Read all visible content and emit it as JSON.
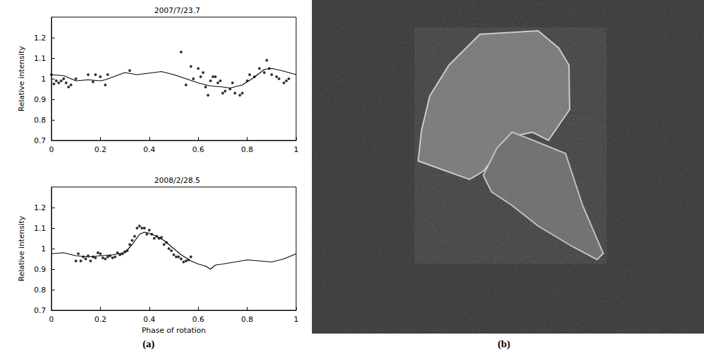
{
  "panel_labels": [
    "(a)",
    "(b)"
  ],
  "chart_data": [
    {
      "type": "line",
      "title": "2007/7/23.7",
      "ylabel": "Relative intensity",
      "xlim": [
        0,
        1
      ],
      "xticks": [
        0,
        0.2,
        0.4,
        0.6,
        0.8,
        1
      ],
      "ylim": [
        0.7,
        1.3
      ],
      "yticks": [
        0.7,
        0.8,
        0.9,
        1,
        1.1,
        1.2
      ],
      "grid": false,
      "series": [
        {
          "type": "line",
          "color": "#000000",
          "line_style": "solid",
          "x": [
            0,
            0.05,
            0.1,
            0.15,
            0.2,
            0.22,
            0.3,
            0.35,
            0.45,
            0.5,
            0.55,
            0.6,
            0.65,
            0.7,
            0.73,
            0.78,
            0.82,
            0.87,
            0.9,
            0.94,
            1
          ],
          "values": [
            1.02,
            1.015,
            0.99,
            0.995,
            0.99,
            0.995,
            1.03,
            1.02,
            1.035,
            1.02,
            1.0,
            0.98,
            0.965,
            0.96,
            0.955,
            0.97,
            1.0,
            1.045,
            1.05,
            1.04,
            1.02
          ]
        },
        {
          "type": "scatter",
          "color": "#000000",
          "marker": "circle",
          "x": [
            0,
            0.01,
            0.02,
            0.03,
            0.04,
            0.05,
            0.06,
            0.07,
            0.08,
            0.1,
            0.15,
            0.17,
            0.18,
            0.2,
            0.22,
            0.23,
            0.32,
            0.53,
            0.55,
            0.57,
            0.58,
            0.6,
            0.61,
            0.62,
            0.63,
            0.64,
            0.65,
            0.66,
            0.67,
            0.68,
            0.69,
            0.7,
            0.71,
            0.73,
            0.74,
            0.75,
            0.77,
            0.78,
            0.8,
            0.81,
            0.83,
            0.85,
            0.87,
            0.88,
            0.89,
            0.9,
            0.92,
            0.93,
            0.95,
            0.96,
            0.97
          ],
          "values": [
            1.02,
            0.975,
            0.99,
            0.98,
            0.99,
            1.0,
            0.98,
            0.96,
            0.97,
            1.0,
            1.02,
            0.985,
            1.02,
            1.01,
            0.97,
            1.02,
            1.04,
            1.13,
            0.97,
            1.06,
            1.0,
            1.05,
            1.01,
            1.03,
            0.96,
            0.92,
            0.99,
            1.01,
            1.01,
            0.98,
            0.99,
            0.93,
            0.94,
            0.95,
            0.98,
            0.93,
            0.92,
            0.93,
            0.99,
            1.02,
            1.01,
            1.05,
            1.03,
            1.09,
            1.05,
            1.02,
            1.01,
            1.0,
            0.98,
            0.99,
            1.0
          ]
        }
      ]
    },
    {
      "type": "line",
      "title": "2008/2/28.5",
      "ylabel": "Relative intensity",
      "xlabel": "Phase of rotation",
      "xlim": [
        0,
        1
      ],
      "xticks": [
        0,
        0.2,
        0.4,
        0.6,
        0.8,
        1
      ],
      "ylim": [
        0.7,
        1.3
      ],
      "yticks": [
        0.7,
        0.8,
        0.9,
        1,
        1.1,
        1.2
      ],
      "grid": false,
      "series": [
        {
          "type": "line",
          "color": "#000000",
          "line_style": "solid",
          "x": [
            0,
            0.05,
            0.1,
            0.15,
            0.2,
            0.25,
            0.3,
            0.33,
            0.36,
            0.38,
            0.4,
            0.43,
            0.46,
            0.5,
            0.53,
            0.57,
            0.6,
            0.63,
            0.65,
            0.67,
            0.7,
            0.75,
            0.8,
            0.85,
            0.9,
            0.95,
            1
          ],
          "values": [
            0.975,
            0.98,
            0.965,
            0.96,
            0.965,
            0.97,
            0.98,
            1.02,
            1.07,
            1.08,
            1.075,
            1.06,
            1.04,
            1.0,
            0.97,
            0.94,
            0.925,
            0.915,
            0.9,
            0.92,
            0.925,
            0.935,
            0.945,
            0.94,
            0.935,
            0.95,
            0.975
          ]
        },
        {
          "type": "scatter",
          "color": "#000000",
          "marker": "circle",
          "x": [
            0.1,
            0.11,
            0.12,
            0.13,
            0.14,
            0.15,
            0.16,
            0.17,
            0.18,
            0.19,
            0.2,
            0.21,
            0.22,
            0.23,
            0.24,
            0.25,
            0.26,
            0.27,
            0.28,
            0.29,
            0.3,
            0.31,
            0.32,
            0.33,
            0.34,
            0.35,
            0.36,
            0.37,
            0.38,
            0.39,
            0.4,
            0.41,
            0.42,
            0.43,
            0.44,
            0.45,
            0.46,
            0.47,
            0.48,
            0.49,
            0.5,
            0.51,
            0.52,
            0.53,
            0.54,
            0.55,
            0.56,
            0.57
          ],
          "values": [
            0.94,
            0.975,
            0.94,
            0.96,
            0.95,
            0.965,
            0.94,
            0.96,
            0.955,
            0.98,
            0.975,
            0.955,
            0.95,
            0.96,
            0.965,
            0.955,
            0.96,
            0.98,
            0.97,
            0.975,
            0.985,
            0.99,
            1.02,
            1.04,
            1.06,
            1.1,
            1.11,
            1.1,
            1.1,
            1.07,
            1.09,
            1.07,
            1.05,
            1.06,
            1.05,
            1.055,
            1.02,
            1.03,
            1.0,
            0.99,
            0.97,
            0.96,
            0.96,
            0.95,
            0.935,
            0.94,
            0.945,
            0.96
          ]
        }
      ]
    }
  ]
}
